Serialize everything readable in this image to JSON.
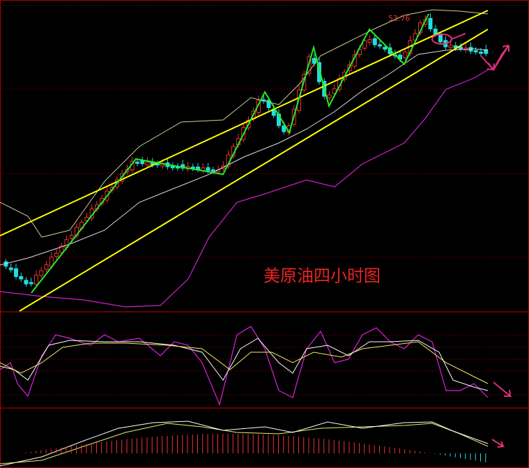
{
  "chart_data": {
    "type": "candlestick",
    "title": "美原油四小时图",
    "annotations": [
      "53.76"
    ]
  }
}
